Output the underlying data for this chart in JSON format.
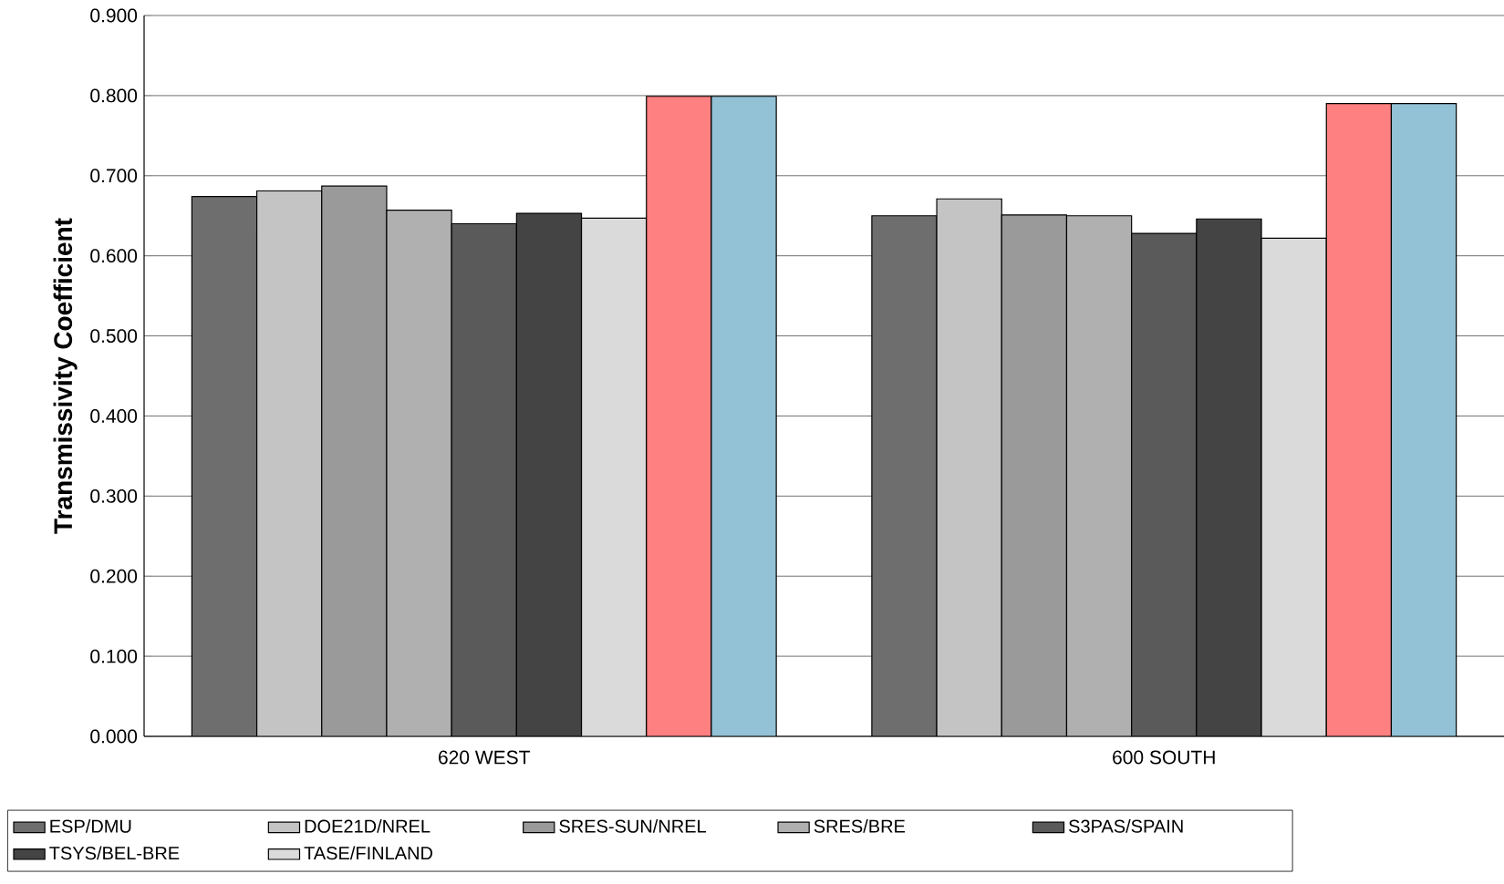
{
  "chart_data": {
    "type": "bar",
    "ylabel": "Transmissivity Coefficient",
    "categories": [
      "620 WEST",
      "600 SOUTH"
    ],
    "series": [
      {
        "name": "ESP/DMU",
        "color": "#6e6e6e",
        "values": [
          0.674,
          0.65
        ]
      },
      {
        "name": "DOE21D/NREL",
        "color": "#c4c4c4",
        "values": [
          0.681,
          0.671
        ]
      },
      {
        "name": "SRES-SUN/NREL",
        "color": "#9a9a9a",
        "values": [
          0.687,
          0.651
        ]
      },
      {
        "name": "SRES/BRE",
        "color": "#b0b0b0",
        "values": [
          0.657,
          0.65
        ]
      },
      {
        "name": "S3PAS/SPAIN",
        "color": "#5a5a5a",
        "values": [
          0.64,
          0.628
        ]
      },
      {
        "name": "TSYS/BEL-BRE",
        "color": "#444444",
        "values": [
          0.653,
          0.646
        ]
      },
      {
        "name": "TASE/FINLAND",
        "color": "#dadada",
        "values": [
          0.647,
          0.622
        ]
      },
      {
        "color": "#ff8080",
        "values": [
          0.799,
          0.79
        ]
      },
      {
        "color": "#93c2d6",
        "values": [
          0.799,
          0.79
        ]
      }
    ],
    "ylim": [
      0,
      0.9
    ],
    "yticks": [
      {
        "value": 0,
        "label": "0.000"
      },
      {
        "value": 0.1,
        "label": "0.100"
      },
      {
        "value": 0.2,
        "label": "0.200"
      },
      {
        "value": 0.3,
        "label": "0.300"
      },
      {
        "value": 0.4,
        "label": "0.400"
      },
      {
        "value": 0.5,
        "label": "0.500"
      },
      {
        "value": 0.6,
        "label": "0.600"
      },
      {
        "value": 0.7,
        "label": "0.700"
      },
      {
        "value": 0.8,
        "label": "0.800"
      },
      {
        "value": 0.9,
        "label": "0.900"
      }
    ],
    "grid": "y",
    "legend": "bottom"
  }
}
